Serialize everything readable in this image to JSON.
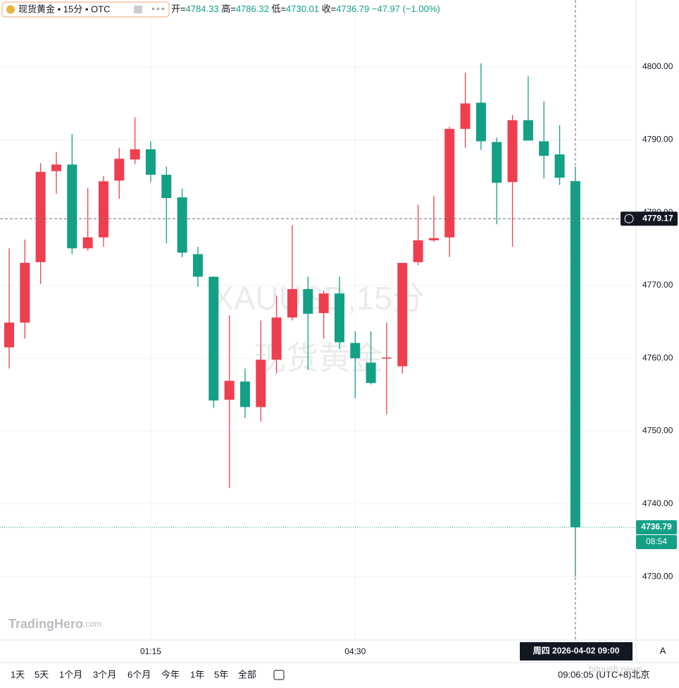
{
  "header": {
    "title": "现货黄金 • 15分 • OTC",
    "ohlc_labels": [
      "开=",
      "高=",
      "低=",
      "收="
    ],
    "change": "−47.97",
    "change_pct": "(−1.00%)"
  },
  "chart_data": {
    "type": "candlestick",
    "categories": [
      null,
      null,
      null,
      null,
      null,
      null,
      null,
      null,
      null,
      "01:15",
      null,
      null,
      null,
      null,
      null,
      null,
      null,
      null,
      null,
      null,
      null,
      null,
      "04:30",
      null,
      null,
      null,
      null,
      null,
      null,
      null,
      null,
      null,
      null,
      null,
      null,
      null,
      null
    ],
    "open": [
      4761.5,
      4764.9,
      4773.2,
      4785.7,
      4786.6,
      4775.1,
      4776.6,
      4784.4,
      4787.3,
      4788.7,
      4785.2,
      4782.1,
      4774.3,
      4771.2,
      4754.3,
      4756.8,
      4753.3,
      4759.8,
      4765.6,
      4769.5,
      4766.2,
      4768.9,
      4762.1,
      4759.4,
      4760.0,
      4758.9,
      4773.2,
      4776.2,
      4776.6,
      4791.5,
      4795.1,
      4789.7,
      4784.2,
      4792.7,
      4789.8,
      4788.0,
      4784.33
    ],
    "high": [
      4775.1,
      4776.3,
      4786.8,
      4788.3,
      4790.8,
      4783.4,
      4785.0,
      4788.9,
      4793.1,
      4789.8,
      4786.3,
      4783.3,
      4775.3,
      4771.2,
      4765.9,
      4758.6,
      4765.2,
      4768.6,
      4778.3,
      4771.2,
      4769.3,
      4771.2,
      4763.7,
      4763.7,
      4764.9,
      4773.1,
      4781.1,
      4782.3,
      4791.8,
      4799.2,
      4800.5,
      4790.3,
      4793.4,
      4798.7,
      4795.3,
      4792.0,
      4786.32
    ],
    "low": [
      4758.6,
      4762.7,
      4770.2,
      4782.6,
      4774.3,
      4774.8,
      4775.3,
      4781.9,
      4786.7,
      4784.2,
      4775.8,
      4773.9,
      4769.8,
      4753.2,
      4742.2,
      4751.8,
      4751.3,
      4757.9,
      4765.2,
      4758.4,
      4762.7,
      4761.3,
      4754.5,
      4756.4,
      4752.3,
      4757.9,
      4772.8,
      4776.0,
      4773.9,
      4788.9,
      4788.6,
      4778.4,
      4775.3,
      4789.9,
      4784.7,
      4783.8,
      4730.01
    ],
    "close": [
      4764.9,
      4773.1,
      4785.6,
      4786.6,
      4775.1,
      4776.6,
      4784.3,
      4787.4,
      4788.7,
      4785.2,
      4782.0,
      4774.5,
      4771.2,
      4754.2,
      4756.9,
      4753.3,
      4759.8,
      4765.6,
      4769.5,
      4766.1,
      4768.9,
      4762.2,
      4760.0,
      4756.6,
      4760.1,
      4773.1,
      4776.2,
      4776.5,
      4791.5,
      4795.0,
      4789.8,
      4784.1,
      4792.7,
      4789.9,
      4787.8,
      4784.8,
      4736.79
    ],
    "up_color": "#ef3f4f",
    "down_color": "#13a085",
    "ylim": [
      4721.3,
      4809.2
    ],
    "yticks": [
      {
        "value": 4730,
        "label": "4730.00"
      },
      {
        "value": 4740,
        "label": "4740.00"
      },
      {
        "value": 4750,
        "label": "4750.00"
      },
      {
        "value": 4760,
        "label": "4760.00"
      },
      {
        "value": 4770,
        "label": "4770.00"
      },
      {
        "value": 4780,
        "label": "4780.00"
      },
      {
        "value": 4790,
        "label": "4790.00"
      },
      {
        "value": 4800,
        "label": "4800.00"
      }
    ],
    "grid": true,
    "crosshair_price": 4779.17,
    "crosshair_time": "周四 2026-04-02 09:00",
    "countdown": "08:54"
  },
  "watermark": {
    "symbol": "XAUUSD,15分",
    "name": "现货黄金"
  },
  "branding": {
    "name": "TradingHero",
    "domain": ".com",
    "source": "bitpush.news"
  },
  "toolbar": {
    "ranges": [
      "1天",
      "5天",
      "1个月",
      "3个月",
      "6个月",
      "今年",
      "1年",
      "5年",
      "全部"
    ],
    "clock": "09:06:05 (UTC+8)北京",
    "auto": "A"
  }
}
